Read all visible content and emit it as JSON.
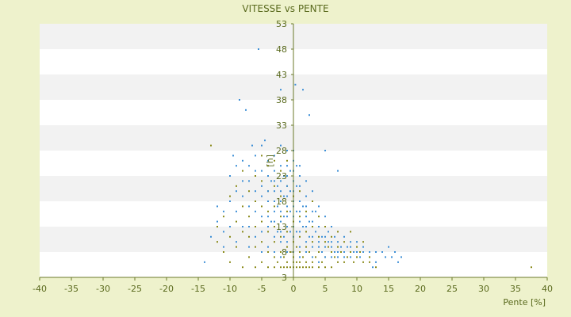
{
  "chart_data": {
    "type": "scatter",
    "title": "VITESSE vs PENTE",
    "xlabel": "Pente [%]",
    "ylabel": "[h]",
    "xlim": [
      -40,
      40
    ],
    "ylim": [
      3,
      53
    ],
    "x_ticks": [
      -40,
      -35,
      -30,
      -25,
      -20,
      -15,
      -10,
      -5,
      0,
      5,
      10,
      15,
      20,
      25,
      30,
      35,
      40
    ],
    "y_ticks": [
      3,
      8,
      13,
      18,
      23,
      28,
      33,
      38,
      43,
      48,
      53
    ],
    "x_tick_labels": [
      "-40",
      "-35",
      "-30",
      "-25",
      "-20",
      "-15",
      "-10",
      "-5",
      "0",
      "5",
      "10",
      "15",
      "20",
      "25",
      "30",
      "35",
      "40"
    ],
    "y_tick_labels": [
      "3",
      "8",
      "13",
      "18",
      "23",
      "28",
      "33",
      "38",
      "43",
      "48",
      "53"
    ],
    "grid": true,
    "colors": {
      "background": "#eef2cc",
      "plot_band_light": "#ffffff",
      "plot_band_dark": "#f2f2f2",
      "series_blue": "#3d8fd6",
      "series_olive": "#8a8a1a",
      "axis": "#6b7a2a"
    },
    "series": [
      {
        "color": "#8a8a1a",
        "points": [
          [
            -13,
            29
          ],
          [
            -12,
            10
          ],
          [
            -12,
            13
          ],
          [
            -11,
            8
          ],
          [
            -11,
            15
          ],
          [
            -10,
            6
          ],
          [
            -10,
            11
          ],
          [
            -10,
            19
          ],
          [
            -9,
            9
          ],
          [
            -9,
            14
          ],
          [
            -9,
            21
          ],
          [
            -8,
            5
          ],
          [
            -8,
            12
          ],
          [
            -8,
            17
          ],
          [
            -8,
            24
          ],
          [
            -7,
            7
          ],
          [
            -7,
            11
          ],
          [
            -7,
            15
          ],
          [
            -7,
            20
          ],
          [
            -6,
            5
          ],
          [
            -6,
            9
          ],
          [
            -6,
            13
          ],
          [
            -6,
            18
          ],
          [
            -6,
            23
          ],
          [
            -5,
            6
          ],
          [
            -5,
            10
          ],
          [
            -5,
            14
          ],
          [
            -5,
            17
          ],
          [
            -5,
            22
          ],
          [
            -5,
            27
          ],
          [
            -4,
            5
          ],
          [
            -4,
            8
          ],
          [
            -4,
            12
          ],
          [
            -4,
            16
          ],
          [
            -4,
            20
          ],
          [
            -4,
            25
          ],
          [
            -3,
            5
          ],
          [
            -3,
            7
          ],
          [
            -3,
            10
          ],
          [
            -3,
            13
          ],
          [
            -3,
            17
          ],
          [
            -3,
            21
          ],
          [
            -3,
            26
          ],
          [
            -2.5,
            6
          ],
          [
            -2,
            5
          ],
          [
            -2,
            8
          ],
          [
            -2,
            11
          ],
          [
            -2,
            15
          ],
          [
            -2,
            19
          ],
          [
            -2,
            24
          ],
          [
            -1.5,
            5
          ],
          [
            -1.5,
            7
          ],
          [
            -1,
            5
          ],
          [
            -1,
            6
          ],
          [
            -1,
            9
          ],
          [
            -1,
            12
          ],
          [
            -1,
            16
          ],
          [
            -1,
            21
          ],
          [
            -1,
            26
          ],
          [
            -0.5,
            5
          ],
          [
            -0.5,
            8
          ],
          [
            0,
            5
          ],
          [
            0,
            6
          ],
          [
            0,
            7
          ],
          [
            0,
            10
          ],
          [
            0,
            14
          ],
          [
            0,
            19
          ],
          [
            0,
            24
          ],
          [
            0.5,
            5
          ],
          [
            0.5,
            6
          ],
          [
            0.5,
            9
          ],
          [
            1,
            5
          ],
          [
            1,
            6
          ],
          [
            1,
            8
          ],
          [
            1,
            11
          ],
          [
            1,
            15
          ],
          [
            1,
            20
          ],
          [
            1.5,
            5
          ],
          [
            1.5,
            7
          ],
          [
            2,
            5
          ],
          [
            2,
            6
          ],
          [
            2,
            9
          ],
          [
            2,
            12
          ],
          [
            2,
            16
          ],
          [
            2.5,
            5
          ],
          [
            2.5,
            8
          ],
          [
            3,
            5
          ],
          [
            3,
            6
          ],
          [
            3,
            10
          ],
          [
            3,
            13
          ],
          [
            3,
            18
          ],
          [
            3.5,
            7
          ],
          [
            4,
            5
          ],
          [
            4,
            8
          ],
          [
            4,
            11
          ],
          [
            4,
            15
          ],
          [
            4.5,
            6
          ],
          [
            5,
            5
          ],
          [
            5,
            7
          ],
          [
            5,
            10
          ],
          [
            5,
            13
          ],
          [
            5.5,
            9
          ],
          [
            6,
            5
          ],
          [
            6,
            8
          ],
          [
            6,
            11
          ],
          [
            6.5,
            7
          ],
          [
            7,
            6
          ],
          [
            7,
            9
          ],
          [
            7,
            12
          ],
          [
            7.5,
            8
          ],
          [
            8,
            6
          ],
          [
            8,
            10
          ],
          [
            8.5,
            7
          ],
          [
            9,
            8
          ],
          [
            9,
            12
          ],
          [
            9.5,
            6
          ],
          [
            10,
            7
          ],
          [
            10,
            9
          ],
          [
            10.5,
            8
          ],
          [
            11,
            6
          ],
          [
            11,
            10
          ],
          [
            12,
            7
          ],
          [
            12,
            6
          ],
          [
            13,
            5
          ],
          [
            37.5,
            5
          ]
        ]
      },
      {
        "color": "#3d8fd6",
        "points": [
          [
            -14,
            6
          ],
          [
            -13,
            11
          ],
          [
            -12,
            14
          ],
          [
            -12,
            17
          ],
          [
            -11,
            9
          ],
          [
            -11,
            12
          ],
          [
            -11,
            16
          ],
          [
            -10,
            13
          ],
          [
            -10,
            18
          ],
          [
            -10,
            23
          ],
          [
            -9.5,
            27
          ],
          [
            -9,
            10
          ],
          [
            -9,
            16
          ],
          [
            -9,
            20
          ],
          [
            -9,
            25
          ],
          [
            -8.5,
            38
          ],
          [
            -8,
            13
          ],
          [
            -8,
            19
          ],
          [
            -8,
            22
          ],
          [
            -8,
            26
          ],
          [
            -7.5,
            36
          ],
          [
            -7,
            9
          ],
          [
            -7,
            13
          ],
          [
            -7,
            17
          ],
          [
            -7,
            22
          ],
          [
            -7,
            25
          ],
          [
            -6.5,
            29
          ],
          [
            -6,
            11
          ],
          [
            -6,
            16
          ],
          [
            -6,
            20
          ],
          [
            -6,
            24
          ],
          [
            -6,
            27
          ],
          [
            -5.5,
            48
          ],
          [
            -5,
            8
          ],
          [
            -5,
            12
          ],
          [
            -5,
            15
          ],
          [
            -5,
            19
          ],
          [
            -5,
            21
          ],
          [
            -5,
            24
          ],
          [
            -5,
            29
          ],
          [
            -4.5,
            30
          ],
          [
            -4,
            9
          ],
          [
            -4,
            13
          ],
          [
            -4,
            15
          ],
          [
            -4,
            18
          ],
          [
            -4,
            20
          ],
          [
            -4,
            23
          ],
          [
            -4,
            26
          ],
          [
            -3.5,
            14
          ],
          [
            -3.5,
            22
          ],
          [
            -3,
            8
          ],
          [
            -3,
            11
          ],
          [
            -3,
            14
          ],
          [
            -3,
            16
          ],
          [
            -3,
            18
          ],
          [
            -3,
            20
          ],
          [
            -3,
            22
          ],
          [
            -3,
            24
          ],
          [
            -3,
            27
          ],
          [
            -2.5,
            12
          ],
          [
            -2.5,
            17
          ],
          [
            -2.5,
            21
          ],
          [
            -2,
            7
          ],
          [
            -2,
            10
          ],
          [
            -2,
            12
          ],
          [
            -2,
            14
          ],
          [
            -2,
            16
          ],
          [
            -2,
            18
          ],
          [
            -2,
            20
          ],
          [
            -2,
            22
          ],
          [
            -2,
            25
          ],
          [
            -2,
            29
          ],
          [
            -2,
            40
          ],
          [
            -1.5,
            11
          ],
          [
            -1.5,
            15
          ],
          [
            -1.5,
            19
          ],
          [
            -1.5,
            23
          ],
          [
            -1,
            8
          ],
          [
            -1,
            10
          ],
          [
            -1,
            13
          ],
          [
            -1,
            15
          ],
          [
            -1,
            17
          ],
          [
            -1,
            19
          ],
          [
            -1,
            21
          ],
          [
            -1,
            23
          ],
          [
            -1,
            25
          ],
          [
            -1,
            28
          ],
          [
            -0.5,
            12
          ],
          [
            -0.5,
            16
          ],
          [
            -0.5,
            20
          ],
          [
            -0.5,
            24
          ],
          [
            0,
            8
          ],
          [
            0,
            11
          ],
          [
            0,
            13
          ],
          [
            0,
            15
          ],
          [
            0,
            17
          ],
          [
            0,
            18
          ],
          [
            0,
            20
          ],
          [
            0,
            22
          ],
          [
            0,
            24
          ],
          [
            0,
            26
          ],
          [
            0,
            28
          ],
          [
            0.3,
            41
          ],
          [
            0.5,
            12
          ],
          [
            0.5,
            16
          ],
          [
            0.5,
            21
          ],
          [
            0.5,
            25
          ],
          [
            1,
            7
          ],
          [
            1,
            9
          ],
          [
            1,
            12
          ],
          [
            1,
            14
          ],
          [
            1,
            16
          ],
          [
            1,
            18
          ],
          [
            1,
            21
          ],
          [
            1,
            23
          ],
          [
            1,
            25
          ],
          [
            1.5,
            13
          ],
          [
            1.5,
            17
          ],
          [
            1.5,
            40
          ],
          [
            2,
            8
          ],
          [
            2,
            10
          ],
          [
            2,
            13
          ],
          [
            2,
            15
          ],
          [
            2,
            17
          ],
          [
            2,
            19
          ],
          [
            2,
            22
          ],
          [
            2.5,
            11
          ],
          [
            2.5,
            14
          ],
          [
            2.5,
            35
          ],
          [
            3,
            7
          ],
          [
            3,
            9
          ],
          [
            3,
            11
          ],
          [
            3,
            14
          ],
          [
            3,
            16
          ],
          [
            3,
            20
          ],
          [
            3.5,
            12
          ],
          [
            3.5,
            16
          ],
          [
            4,
            6
          ],
          [
            4,
            9
          ],
          [
            4,
            10
          ],
          [
            4,
            13
          ],
          [
            4,
            17
          ],
          [
            4.5,
            11
          ],
          [
            4.5,
            8
          ],
          [
            5,
            7
          ],
          [
            5,
            9
          ],
          [
            5,
            11
          ],
          [
            5,
            15
          ],
          [
            5,
            28
          ],
          [
            5.5,
            10
          ],
          [
            5.5,
            12
          ],
          [
            6,
            7
          ],
          [
            6,
            9
          ],
          [
            6,
            10
          ],
          [
            6,
            13
          ],
          [
            6.5,
            8
          ],
          [
            6.5,
            11
          ],
          [
            7,
            7
          ],
          [
            7,
            8
          ],
          [
            7,
            10
          ],
          [
            7,
            24
          ],
          [
            7.5,
            9
          ],
          [
            8,
            7
          ],
          [
            8,
            8
          ],
          [
            8,
            11
          ],
          [
            8.5,
            9
          ],
          [
            9,
            7
          ],
          [
            9,
            9
          ],
          [
            9,
            10
          ],
          [
            9.5,
            8
          ],
          [
            10,
            8
          ],
          [
            10,
            10
          ],
          [
            10.5,
            7
          ],
          [
            11,
            9
          ],
          [
            11,
            8
          ],
          [
            12,
            8
          ],
          [
            13,
            8
          ],
          [
            13,
            6
          ],
          [
            14,
            8
          ],
          [
            14.5,
            7
          ],
          [
            15,
            9
          ],
          [
            15.5,
            7
          ],
          [
            16,
            8
          ],
          [
            16.5,
            6
          ],
          [
            17,
            7
          ],
          [
            12.5,
            5
          ]
        ]
      }
    ]
  }
}
